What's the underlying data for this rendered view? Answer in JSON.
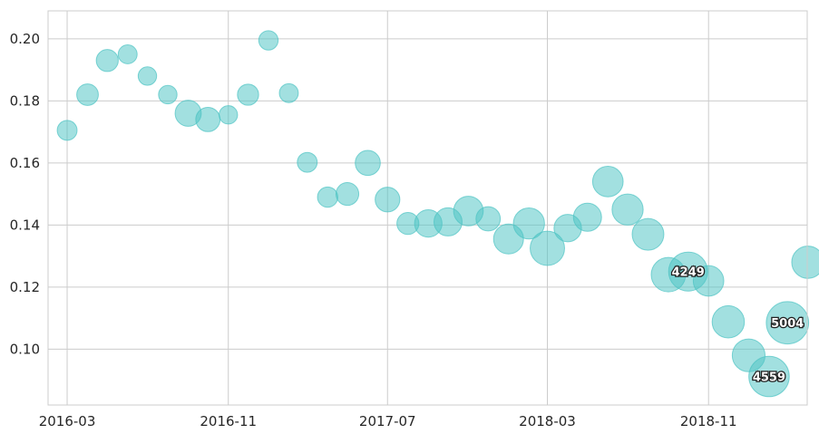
{
  "chart_data": {
    "type": "scatter",
    "title": "",
    "xlabel": "",
    "ylabel": "",
    "xlim": [
      "2016-02-01",
      "2019-03-31"
    ],
    "ylim": [
      0.082,
      0.209
    ],
    "grid": true,
    "bubble_color": "#4cc3c3",
    "x_ticks": [
      "2016-03",
      "2016-11",
      "2017-07",
      "2018-03",
      "2018-11"
    ],
    "y_ticks": [
      "0.10",
      "0.12",
      "0.14",
      "0.16",
      "0.18",
      "0.20"
    ],
    "points": [
      {
        "x": "2016-03-01",
        "y": 0.1705,
        "size": 1100
      },
      {
        "x": "2016-04-01",
        "y": 0.182,
        "size": 1300
      },
      {
        "x": "2016-05-01",
        "y": 0.193,
        "size": 1350
      },
      {
        "x": "2016-06-01",
        "y": 0.195,
        "size": 1000
      },
      {
        "x": "2016-07-01",
        "y": 0.188,
        "size": 950
      },
      {
        "x": "2016-08-01",
        "y": 0.182,
        "size": 950
      },
      {
        "x": "2016-09-01",
        "y": 0.176,
        "size": 1900
      },
      {
        "x": "2016-10-01",
        "y": 0.174,
        "size": 1650
      },
      {
        "x": "2016-11-01",
        "y": 0.1755,
        "size": 950
      },
      {
        "x": "2016-12-01",
        "y": 0.182,
        "size": 1250
      },
      {
        "x": "2017-01-01",
        "y": 0.1995,
        "size": 1050
      },
      {
        "x": "2017-02-01",
        "y": 0.1825,
        "size": 1000
      },
      {
        "x": "2017-03-01",
        "y": 0.1602,
        "size": 1100
      },
      {
        "x": "2017-04-01",
        "y": 0.149,
        "size": 1150
      },
      {
        "x": "2017-05-01",
        "y": 0.15,
        "size": 1450
      },
      {
        "x": "2017-06-01",
        "y": 0.16,
        "size": 1750
      },
      {
        "x": "2017-07-01",
        "y": 0.1482,
        "size": 1700
      },
      {
        "x": "2017-08-01",
        "y": 0.1405,
        "size": 1350
      },
      {
        "x": "2017-09-01",
        "y": 0.1405,
        "size": 2100
      },
      {
        "x": "2017-10-01",
        "y": 0.141,
        "size": 2200
      },
      {
        "x": "2017-11-01",
        "y": 0.1445,
        "size": 2450
      },
      {
        "x": "2017-12-01",
        "y": 0.142,
        "size": 1650
      },
      {
        "x": "2018-01-01",
        "y": 0.1355,
        "size": 2500
      },
      {
        "x": "2018-02-01",
        "y": 0.1405,
        "size": 2700
      },
      {
        "x": "2018-03-01",
        "y": 0.1325,
        "size": 3300
      },
      {
        "x": "2018-04-01",
        "y": 0.139,
        "size": 2100
      },
      {
        "x": "2018-05-01",
        "y": 0.1425,
        "size": 2200
      },
      {
        "x": "2018-06-01",
        "y": 0.154,
        "size": 2600
      },
      {
        "x": "2018-07-01",
        "y": 0.145,
        "size": 2700
      },
      {
        "x": "2018-08-01",
        "y": 0.137,
        "size": 2800
      },
      {
        "x": "2018-09-01",
        "y": 0.124,
        "size": 3300
      },
      {
        "x": "2018-10-01",
        "y": 0.125,
        "size": 4249,
        "label": "4249"
      },
      {
        "x": "2018-11-01",
        "y": 0.122,
        "size": 2600
      },
      {
        "x": "2018-12-01",
        "y": 0.1088,
        "size": 2900
      },
      {
        "x": "2019-01-01",
        "y": 0.098,
        "size": 3000
      },
      {
        "x": "2019-02-01",
        "y": 0.0912,
        "size": 4559,
        "label": "4559"
      },
      {
        "x": "2019-03-01",
        "y": 0.1085,
        "size": 5004,
        "label": "5004"
      },
      {
        "x": "2019-04-01",
        "y": 0.128,
        "size": 2900
      }
    ]
  }
}
